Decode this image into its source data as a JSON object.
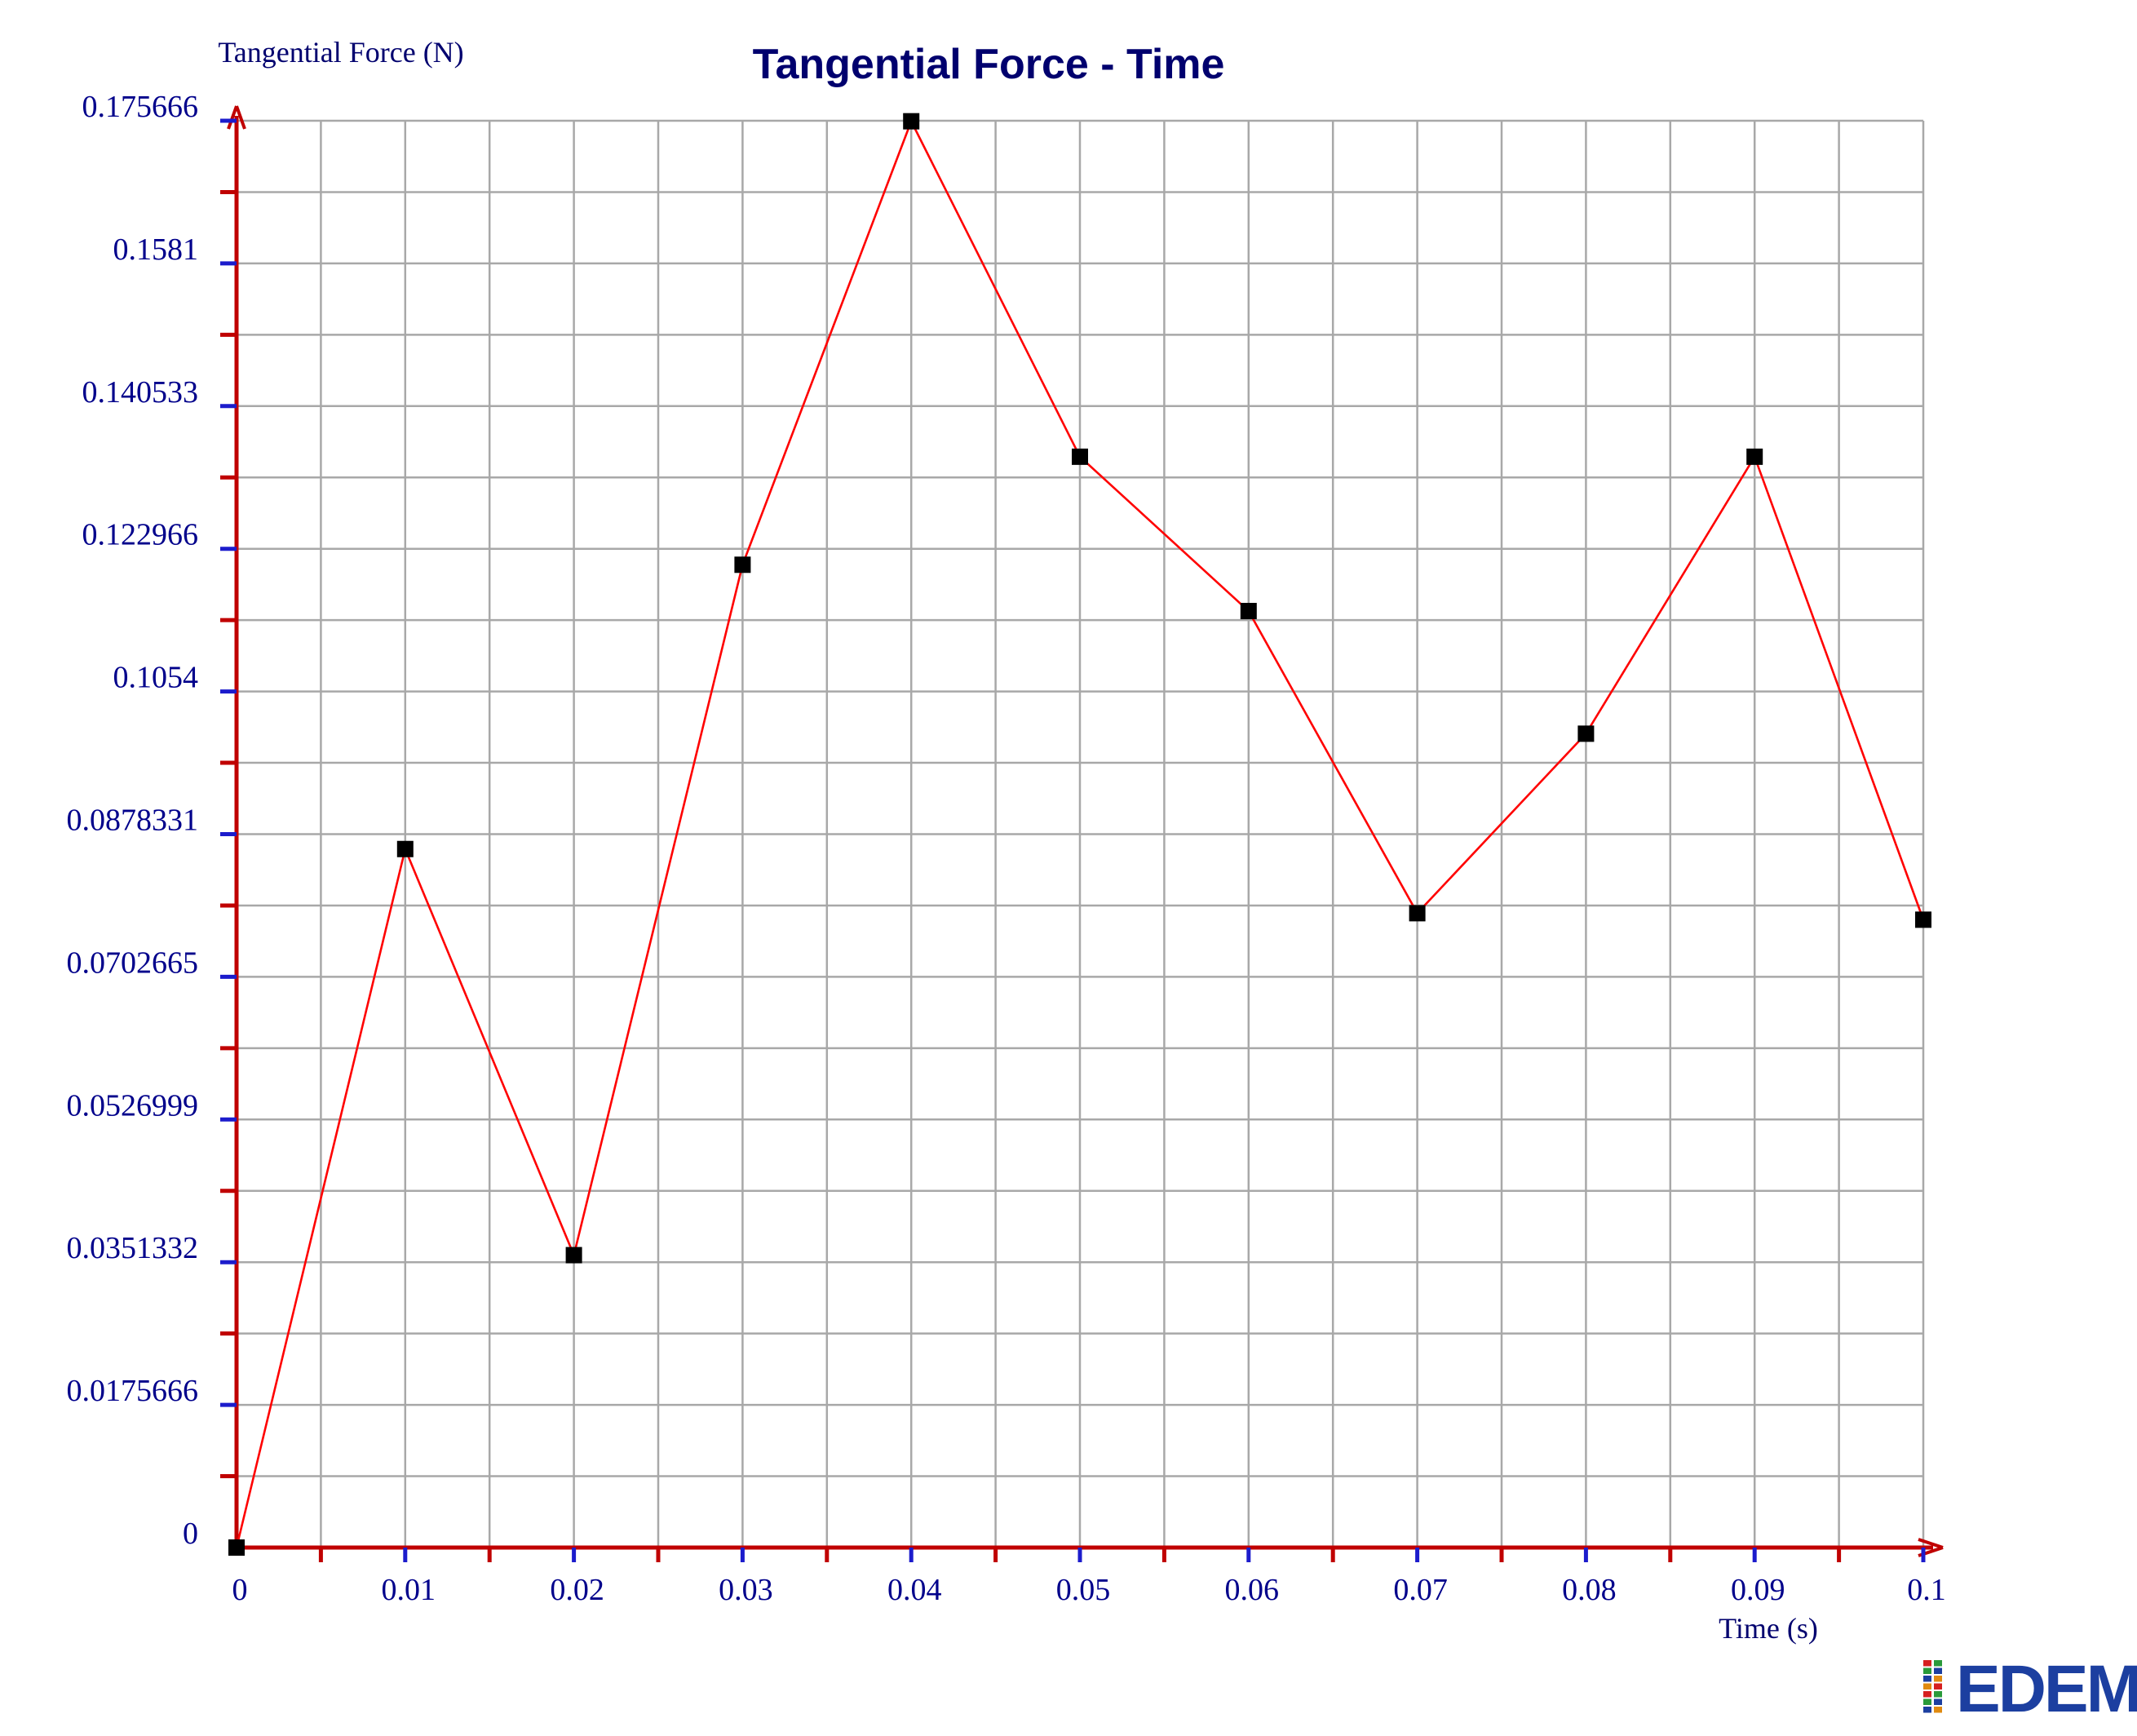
{
  "chart_data": {
    "type": "line",
    "title": "Tangential Force - Time",
    "xlabel": "Time (s)",
    "ylabel": "Tangential Force (N)",
    "xlim": [
      0,
      0.1
    ],
    "ylim": [
      0,
      0.175666
    ],
    "x_ticks": [
      0,
      0.01,
      0.02,
      0.03,
      0.04,
      0.05,
      0.06,
      0.07,
      0.08,
      0.09,
      0.1
    ],
    "x_tick_labels": [
      "0",
      "0.01",
      "0.02",
      "0.03",
      "0.04",
      "0.05",
      "0.06",
      "0.07",
      "0.08",
      "0.09",
      "0.1"
    ],
    "y_ticks": [
      0,
      0.0175666,
      0.0351332,
      0.0526999,
      0.0702665,
      0.0878331,
      0.1054,
      0.122966,
      0.140533,
      0.1581,
      0.175666
    ],
    "y_tick_labels": [
      "0",
      "0.0175666",
      "0.0351332",
      "0.0526999",
      "0.0702665",
      "0.0878331",
      "0.1054",
      "0.122966",
      "0.140533",
      "0.1581",
      "0.175666"
    ],
    "grid": true,
    "series": [
      {
        "x": [
          0,
          0.01,
          0.02,
          0.03,
          0.04,
          0.05,
          0.06,
          0.07,
          0.08,
          0.09,
          0.1
        ],
        "values": [
          0,
          0.086,
          0.036,
          0.121,
          0.1756,
          0.1343,
          0.1153,
          0.0781,
          0.1002,
          0.1343,
          0.0773
        ]
      }
    ]
  },
  "logo": {
    "text": "EDEM"
  },
  "colors": {
    "title": "#00006e",
    "axis_label": "#00006e",
    "tick_label": "#00008b",
    "axis": "#c00000",
    "line": "#ff0000",
    "marker": "#000000",
    "grid": "#a8a8a8",
    "minor_tick": "#c00000",
    "major_tick": "#1c1ccc",
    "logo": "#1c3fa0"
  }
}
